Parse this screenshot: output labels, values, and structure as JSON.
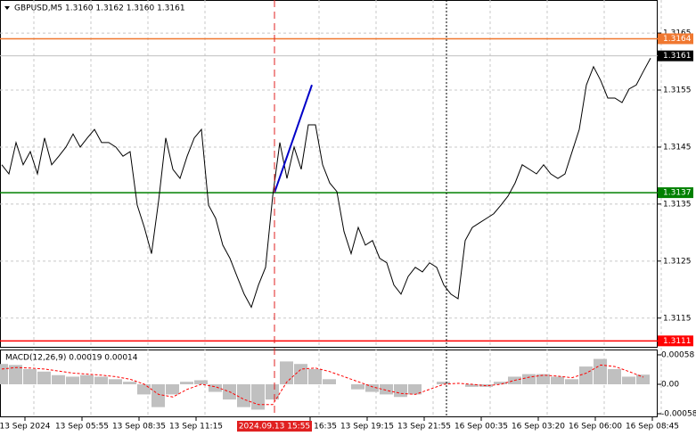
{
  "chart_data": [
    {
      "type": "line",
      "title": "GBPUSD,M5  1.3160 1.3162 1.3160 1.3161",
      "color": "#000000",
      "values": [
        1.31419,
        1.31403,
        1.31458,
        1.31419,
        1.31442,
        1.31403,
        1.31466,
        1.31419,
        1.31434,
        1.3145,
        1.31473,
        1.3145,
        1.31466,
        1.31481,
        1.31458,
        1.31458,
        1.3145,
        1.31434,
        1.31442,
        1.31348,
        1.31309,
        1.31263,
        1.31356,
        1.31466,
        1.31411,
        1.31395,
        1.31434,
        1.31466,
        1.31481,
        1.31348,
        1.31325,
        1.31278,
        1.31255,
        1.31223,
        1.31192,
        1.31169,
        1.31208,
        1.31239,
        1.31364,
        1.31458,
        1.31395,
        1.3145,
        1.31411,
        1.31489,
        1.31489,
        1.31419,
        1.31387,
        1.31372,
        1.31302,
        1.31263,
        1.31309,
        1.31278,
        1.31286,
        1.31255,
        1.31247,
        1.31208,
        1.31192,
        1.31223,
        1.31239,
        1.31231,
        1.31247,
        1.31239,
        1.31208,
        1.31192,
        1.31184,
        1.31286,
        1.31309,
        1.31317,
        1.31325,
        1.31333,
        1.31348,
        1.31364,
        1.31387,
        1.31419,
        1.31411,
        1.31403,
        1.31419,
        1.31403,
        1.31395,
        1.31403,
        1.31442,
        1.31481,
        1.31559,
        1.31591,
        1.31567,
        1.31536,
        1.31536,
        1.31528,
        1.31552,
        1.31559,
        1.31583,
        1.31606
      ],
      "ylim": [
        1.31098,
        1.31708
      ],
      "yticks": [
        1.3165,
        1.3155,
        1.3145,
        1.3135,
        1.3125,
        1.3115
      ],
      "grid": true,
      "levels": [
        {
          "value": 1.3164,
          "color": "#f07830",
          "line_color": "#f07830"
        },
        {
          "value": 1.3161,
          "color": "#000000",
          "line_color": "#c0c0c0"
        },
        {
          "value": 1.3137,
          "color": "#008000",
          "line_color": "#008000"
        },
        {
          "value": 1.3111,
          "color": "#ff0000",
          "line_color": "#ff0000"
        }
      ],
      "trendline": {
        "values": [
          1.3137,
          1.31559
        ],
        "color": "#0000c8"
      },
      "x_labels": [
        "13 Sep 2024",
        "13 Sep 05:55",
        "13 Sep 08:35",
        "13 Sep 11:15",
        "13 Sep 16:35",
        "13 Sep 19:15",
        "13 Sep 21:55",
        "16 Sep 00:35",
        "16 Sep 03:20",
        "16 Sep 06:00",
        "16 Sep 08:45"
      ],
      "crosshair_label": "2024.09.13 15:55"
    },
    {
      "type": "macd",
      "title": "MACD(12,26,9) 0.00019 0.00014",
      "series": [
        {
          "type": "bar",
          "color": "#c0c0c0",
          "values": [
            0.0004,
            0.00038,
            0.0003,
            0.00025,
            0.00018,
            0.00015,
            0.00018,
            0.00015,
            0.0001,
            5e-05,
            -0.0002,
            -0.00045,
            -0.0002,
            5e-05,
            8e-05,
            -0.00015,
            -0.0003,
            -0.00045,
            -0.0005,
            -0.0003,
            0.00045,
            0.0004,
            0.0003,
            0.0001,
            0,
            -0.0001,
            -0.00015,
            -0.0002,
            -0.00025,
            -0.0002,
            0,
            5e-05,
            0,
            -5e-05,
            -5e-05,
            5e-05,
            0.00015,
            0.0002,
            0.0002,
            0.00015,
            0.0001,
            0.00035,
            0.0005,
            0.0003,
            0.00015,
            0.00019
          ]
        },
        {
          "type": "line",
          "color": "#ff0000",
          "values": [
            0.0003,
            0.00033,
            0.00032,
            0.0003,
            0.00026,
            0.00022,
            0.0002,
            0.00018,
            0.00015,
            0.0001,
            0,
            -0.0002,
            -0.00025,
            -0.0001,
            0,
            -5e-05,
            -0.00015,
            -0.0003,
            -0.0004,
            -0.0004,
            5e-05,
            0.0003,
            0.00032,
            0.00025,
            0.00015,
            5e-05,
            -5e-05,
            -0.00012,
            -0.00018,
            -0.0002,
            -0.0001,
            0,
            2e-05,
            0,
            -3e-05,
            0,
            8e-05,
            0.00014,
            0.00018,
            0.00016,
            0.00013,
            0.00022,
            0.00038,
            0.00035,
            0.00025,
            0.00014
          ]
        }
      ],
      "ylim": [
        -0.00065,
        0.000685
      ],
      "yticks": [
        0.00058,
        {
          "value": 0,
          "label": "0.00"
        },
        -0.00058
      ]
    }
  ]
}
